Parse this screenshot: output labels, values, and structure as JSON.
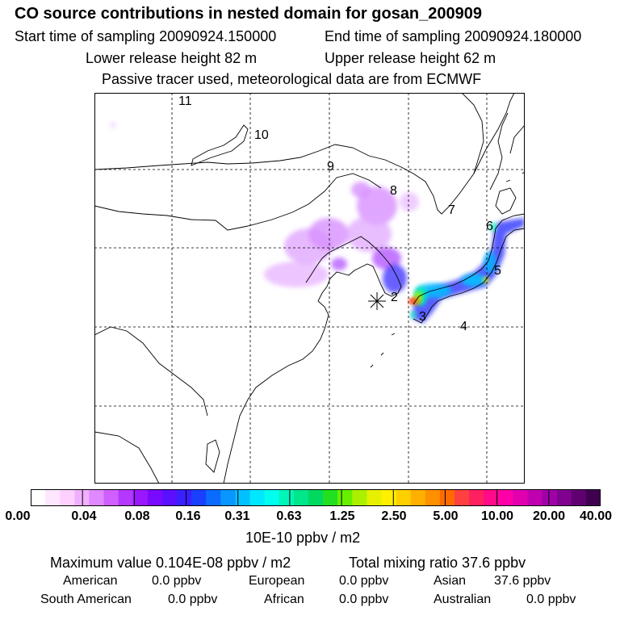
{
  "title": "CO  source contributions in nested domain for gosan_200909",
  "header": {
    "start_label": "Start time of sampling 20090924.150000",
    "end_label": "End time of sampling 20090924.180000",
    "lower_label": "Lower release height   82 m",
    "upper_label": "Upper release height   62 m",
    "note": "Passive tracer used, meteorological data are from ECMWF"
  },
  "map": {
    "point_labels": [
      "11",
      "10",
      "9",
      "8",
      "7",
      "6",
      "5",
      "2",
      "3",
      "4"
    ],
    "colors": {
      "land_outline": "#000000",
      "grid": "#000000"
    }
  },
  "colorbar": {
    "ticks": [
      "0.00",
      "0.04",
      "0.08",
      "0.16",
      "0.31",
      "0.63",
      "1.25",
      "2.50",
      "5.00",
      "10.00",
      "20.00",
      "40.00"
    ],
    "unit": "10E-10 ppbv / m2",
    "colors": [
      "#ffffff",
      "#ffe6ff",
      "#ffd0ff",
      "#f0b0ff",
      "#e088ff",
      "#cf60ff",
      "#b438ff",
      "#9a18ff",
      "#7a0aff",
      "#5a10ff",
      "#3a20ff",
      "#1a40ff",
      "#0a6cff",
      "#0a96ff",
      "#00c0ff",
      "#00e8ff",
      "#00ffee",
      "#00f5b8",
      "#00e68a",
      "#00d860",
      "#22e020",
      "#66f000",
      "#aaf000",
      "#e6f000",
      "#fff000",
      "#ffd000",
      "#ffb000",
      "#ff9000",
      "#ff6a00",
      "#ff4040",
      "#ff2060",
      "#ff0a88",
      "#ff00a8",
      "#e000b0",
      "#c000b0",
      "#a000a8",
      "#800090",
      "#600070",
      "#400050"
    ]
  },
  "stats": {
    "max_label": "Maximum value  0.104E-08 ppbv / m2",
    "total_label": "Total mixing ratio       37.6 ppbv"
  },
  "regions": {
    "american_label": "American",
    "american_value": "0.0 ppbv",
    "european_label": "European",
    "european_value": "0.0 ppbv",
    "asian_label": "Asian",
    "asian_value": "37.6 ppbv",
    "south_american_label": "South American",
    "south_american_value": "0.0 ppbv",
    "african_label": "African",
    "african_value": "0.0 ppbv",
    "australian_label": "Australian",
    "australian_value": "0.0 ppbv"
  }
}
